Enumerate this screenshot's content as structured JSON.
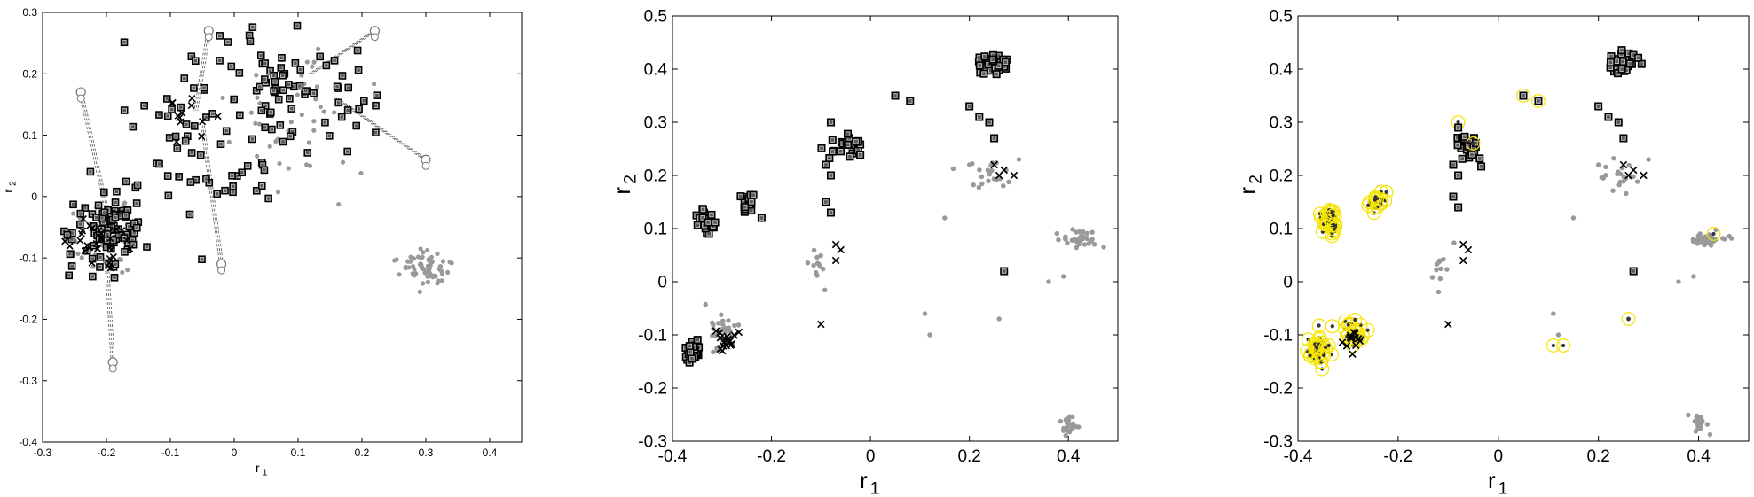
{
  "chart_data": [
    {
      "type": "scatter",
      "title": "",
      "xlabel": "r",
      "xlabel_subscript": "1",
      "ylabel": "r",
      "ylabel_subscript": "2",
      "xlim": [
        -0.3,
        0.45
      ],
      "ylim": [
        -0.4,
        0.3
      ],
      "xticks": [
        -0.3,
        -0.2,
        -0.1,
        0,
        0.1,
        0.2,
        0.3,
        0.4
      ],
      "yticks": [
        -0.4,
        -0.3,
        -0.2,
        -0.1,
        0,
        0.1,
        0.2,
        0.3
      ],
      "tick_labels_x": [
        "-0.3",
        "-0.2",
        "-0.1",
        "0",
        "0.1",
        "0.2",
        "0.3",
        "0.4"
      ],
      "tick_labels_y": [
        "-0.4",
        "-0.3",
        "-0.2",
        "-0.1",
        "0",
        "0.1",
        "0.2",
        "0.3"
      ],
      "grid": false,
      "clusters": [
        {
          "marker": "square",
          "color": "#000000",
          "cx": -0.2,
          "cy": -0.06,
          "sx": 0.03,
          "sy": 0.04,
          "n": 90
        },
        {
          "marker": "x",
          "color": "#000000",
          "cx": -0.21,
          "cy": -0.08,
          "sx": 0.025,
          "sy": 0.025,
          "n": 30
        },
        {
          "marker": "dot",
          "color": "#999999",
          "cx": -0.2,
          "cy": -0.07,
          "sx": 0.03,
          "sy": 0.03,
          "n": 40
        },
        {
          "marker": "square",
          "color": "#000000",
          "cx": -0.06,
          "cy": 0.1,
          "sx": 0.06,
          "sy": 0.08,
          "n": 60
        },
        {
          "marker": "square",
          "color": "#000000",
          "cx": 0.1,
          "cy": 0.17,
          "sx": 0.07,
          "sy": 0.05,
          "n": 70
        },
        {
          "marker": "dot",
          "color": "#999999",
          "cx": 0.1,
          "cy": 0.12,
          "sx": 0.06,
          "sy": 0.05,
          "n": 45
        },
        {
          "marker": "dot",
          "color": "#999999",
          "cx": 0.3,
          "cy": -0.12,
          "sx": 0.02,
          "sy": 0.015,
          "n": 70
        },
        {
          "marker": "x",
          "color": "#000000",
          "cx": -0.07,
          "cy": 0.14,
          "sx": 0.02,
          "sy": 0.02,
          "n": 12
        }
      ],
      "connectors": [
        {
          "from": [
            -0.24,
            0.17
          ],
          "to": [
            -0.2,
            -0.02
          ]
        },
        {
          "from": [
            -0.19,
            -0.27
          ],
          "to": [
            -0.2,
            -0.1
          ]
        },
        {
          "from": [
            -0.04,
            0.27
          ],
          "to": [
            -0.06,
            0.14
          ]
        },
        {
          "from": [
            -0.02,
            -0.11
          ],
          "to": [
            -0.05,
            0.12
          ]
        },
        {
          "from": [
            0.22,
            0.27
          ],
          "to": [
            0.12,
            0.2
          ]
        },
        {
          "from": [
            0.3,
            0.06
          ],
          "to": [
            0.16,
            0.16
          ]
        }
      ]
    },
    {
      "type": "scatter",
      "title": "",
      "xlabel": "r",
      "xlabel_subscript": "1",
      "ylabel": "r",
      "ylabel_subscript": "2",
      "xlim": [
        -0.4,
        0.5
      ],
      "ylim": [
        -0.3,
        0.5
      ],
      "xticks": [
        -0.4,
        -0.2,
        0,
        0.2,
        0.4
      ],
      "yticks": [
        -0.3,
        -0.2,
        -0.1,
        0,
        0.1,
        0.2,
        0.3,
        0.4,
        0.5
      ],
      "tick_labels_x": [
        "-0.4",
        "-0.2",
        "0",
        "0.2",
        "0.4"
      ],
      "tick_labels_y": [
        "-0.3",
        "-0.2",
        "-0.1",
        "0",
        "0.1",
        "0.2",
        "0.3",
        "0.4",
        "0.5"
      ],
      "grid": false,
      "clusters": [
        {
          "marker": "square",
          "color": "#000000",
          "cx": -0.33,
          "cy": 0.11,
          "sx": 0.01,
          "sy": 0.012,
          "n": 30
        },
        {
          "marker": "square",
          "color": "#000000",
          "cx": -0.25,
          "cy": 0.15,
          "sx": 0.01,
          "sy": 0.01,
          "n": 18
        },
        {
          "marker": "square",
          "color": "#000000",
          "cx": -0.05,
          "cy": 0.25,
          "sx": 0.015,
          "sy": 0.012,
          "n": 24
        },
        {
          "marker": "square",
          "color": "#000000",
          "cx": 0.25,
          "cy": 0.41,
          "sx": 0.015,
          "sy": 0.01,
          "n": 40
        },
        {
          "marker": "square",
          "color": "#000000",
          "cx": -0.36,
          "cy": -0.13,
          "sx": 0.008,
          "sy": 0.012,
          "n": 30
        },
        {
          "marker": "x",
          "color": "#000000",
          "cx": -0.29,
          "cy": -0.11,
          "sx": 0.01,
          "sy": 0.01,
          "n": 18
        },
        {
          "marker": "dot",
          "color": "#999999",
          "cx": -0.3,
          "cy": -0.1,
          "sx": 0.015,
          "sy": 0.02,
          "n": 30
        },
        {
          "marker": "dot",
          "color": "#999999",
          "cx": 0.42,
          "cy": 0.08,
          "sx": 0.02,
          "sy": 0.007,
          "n": 35
        },
        {
          "marker": "dot",
          "color": "#999999",
          "cx": 0.4,
          "cy": -0.27,
          "sx": 0.008,
          "sy": 0.01,
          "n": 25
        },
        {
          "marker": "dot",
          "color": "#999999",
          "cx": 0.24,
          "cy": 0.2,
          "sx": 0.02,
          "sy": 0.015,
          "n": 20
        },
        {
          "marker": "dot",
          "color": "#999999",
          "cx": -0.11,
          "cy": 0.03,
          "sx": 0.01,
          "sy": 0.025,
          "n": 12
        }
      ],
      "points": [
        {
          "marker": "square",
          "x": -0.08,
          "y": 0.3
        },
        {
          "marker": "square",
          "x": -0.09,
          "y": 0.22
        },
        {
          "marker": "square",
          "x": -0.08,
          "y": 0.2
        },
        {
          "marker": "square",
          "x": -0.09,
          "y": 0.15
        },
        {
          "marker": "square",
          "x": -0.08,
          "y": 0.13
        },
        {
          "marker": "square",
          "x": 0.05,
          "y": 0.35
        },
        {
          "marker": "square",
          "x": 0.08,
          "y": 0.34
        },
        {
          "marker": "square",
          "x": 0.2,
          "y": 0.33
        },
        {
          "marker": "square",
          "x": 0.22,
          "y": 0.31
        },
        {
          "marker": "square",
          "x": 0.24,
          "y": 0.3
        },
        {
          "marker": "square",
          "x": 0.25,
          "y": 0.27
        },
        {
          "marker": "square",
          "x": 0.27,
          "y": 0.02
        },
        {
          "marker": "square",
          "x": -0.22,
          "y": 0.12
        },
        {
          "marker": "x",
          "x": 0.25,
          "y": 0.22
        },
        {
          "marker": "x",
          "x": 0.27,
          "y": 0.21
        },
        {
          "marker": "x",
          "x": 0.29,
          "y": 0.2
        },
        {
          "marker": "x",
          "x": 0.26,
          "y": 0.2
        },
        {
          "marker": "x",
          "x": -0.1,
          "y": -0.08
        },
        {
          "marker": "x",
          "x": -0.07,
          "y": 0.07
        },
        {
          "marker": "x",
          "x": -0.06,
          "y": 0.06
        },
        {
          "marker": "x",
          "x": -0.07,
          "y": 0.04
        },
        {
          "marker": "dot",
          "x": 0.2,
          "y": 0.22
        },
        {
          "marker": "dot",
          "x": 0.3,
          "y": 0.23
        },
        {
          "marker": "dot",
          "x": 0.15,
          "y": 0.12
        },
        {
          "marker": "dot",
          "x": 0.36,
          "y": 0.0
        },
        {
          "marker": "dot",
          "x": 0.39,
          "y": 0.01
        },
        {
          "marker": "dot",
          "x": 0.11,
          "y": -0.06
        },
        {
          "marker": "dot",
          "x": 0.12,
          "y": -0.1
        },
        {
          "marker": "dot",
          "x": 0.26,
          "y": -0.07
        }
      ]
    },
    {
      "type": "scatter",
      "title": "",
      "xlabel": "r",
      "xlabel_subscript": "1",
      "ylabel": "r",
      "ylabel_subscript": "2",
      "xlim": [
        -0.4,
        0.5
      ],
      "ylim": [
        -0.3,
        0.5
      ],
      "xticks": [
        -0.4,
        -0.2,
        0,
        0.2,
        0.4
      ],
      "yticks": [
        -0.3,
        -0.2,
        -0.1,
        0,
        0.1,
        0.2,
        0.3,
        0.4,
        0.5
      ],
      "tick_labels_x": [
        "-0.4",
        "-0.2",
        "0",
        "0.2",
        "0.4"
      ],
      "tick_labels_y": [
        "-0.3",
        "-0.2",
        "-0.1",
        "0",
        "0.1",
        "0.2",
        "0.3",
        "0.4",
        "0.5"
      ],
      "grid": false,
      "highlight_color": "#f5e400",
      "clusters": [
        {
          "marker": "square",
          "color": "#000000",
          "cx": -0.05,
          "cy": 0.25,
          "sx": 0.015,
          "sy": 0.012,
          "n": 24
        },
        {
          "marker": "square",
          "color": "#000000",
          "cx": 0.25,
          "cy": 0.41,
          "sx": 0.015,
          "sy": 0.01,
          "n": 40
        },
        {
          "marker": "ring",
          "color": "#f5e400",
          "cx": -0.34,
          "cy": 0.11,
          "sx": 0.01,
          "sy": 0.012,
          "n": 35
        },
        {
          "marker": "ring",
          "color": "#f5e400",
          "cx": -0.24,
          "cy": 0.15,
          "sx": 0.01,
          "sy": 0.01,
          "n": 20
        },
        {
          "marker": "ring",
          "color": "#f5e400",
          "cx": -0.36,
          "cy": -0.13,
          "sx": 0.012,
          "sy": 0.015,
          "n": 40
        },
        {
          "marker": "ring",
          "color": "#f5e400",
          "cx": -0.29,
          "cy": -0.1,
          "sx": 0.014,
          "sy": 0.015,
          "n": 25
        },
        {
          "marker": "x",
          "color": "#000000",
          "cx": -0.29,
          "cy": -0.11,
          "sx": 0.01,
          "sy": 0.01,
          "n": 12
        },
        {
          "marker": "dot",
          "color": "#999999",
          "cx": 0.42,
          "cy": 0.08,
          "sx": 0.02,
          "sy": 0.007,
          "n": 35
        },
        {
          "marker": "dot",
          "color": "#999999",
          "cx": 0.4,
          "cy": -0.27,
          "sx": 0.008,
          "sy": 0.01,
          "n": 25
        },
        {
          "marker": "dot",
          "color": "#999999",
          "cx": 0.24,
          "cy": 0.2,
          "sx": 0.02,
          "sy": 0.015,
          "n": 20
        },
        {
          "marker": "dot",
          "color": "#999999",
          "cx": -0.11,
          "cy": 0.03,
          "sx": 0.01,
          "sy": 0.025,
          "n": 12
        }
      ],
      "points": [
        {
          "marker": "square",
          "x": -0.08,
          "y": 0.29
        },
        {
          "marker": "square",
          "x": -0.09,
          "y": 0.22
        },
        {
          "marker": "square",
          "x": -0.08,
          "y": 0.2
        },
        {
          "marker": "square",
          "x": -0.09,
          "y": 0.16
        },
        {
          "marker": "square",
          "x": -0.08,
          "y": 0.14
        },
        {
          "marker": "square",
          "x": 0.05,
          "y": 0.35
        },
        {
          "marker": "square",
          "x": 0.08,
          "y": 0.34
        },
        {
          "marker": "square",
          "x": 0.2,
          "y": 0.33
        },
        {
          "marker": "square",
          "x": 0.22,
          "y": 0.31
        },
        {
          "marker": "square",
          "x": 0.24,
          "y": 0.3
        },
        {
          "marker": "square",
          "x": 0.25,
          "y": 0.27
        },
        {
          "marker": "square",
          "x": 0.27,
          "y": 0.02
        },
        {
          "marker": "ring",
          "x": 0.05,
          "y": 0.35
        },
        {
          "marker": "ring",
          "x": 0.08,
          "y": 0.34
        },
        {
          "marker": "ring",
          "x": -0.08,
          "y": 0.3
        },
        {
          "marker": "ring",
          "x": -0.05,
          "y": 0.26
        },
        {
          "marker": "ring",
          "x": 0.11,
          "y": -0.12
        },
        {
          "marker": "ring",
          "x": 0.13,
          "y": -0.12
        },
        {
          "marker": "ring",
          "x": 0.26,
          "y": -0.07
        },
        {
          "marker": "ring",
          "x": 0.43,
          "y": 0.09
        },
        {
          "marker": "x",
          "x": 0.25,
          "y": 0.22
        },
        {
          "marker": "x",
          "x": 0.27,
          "y": 0.21
        },
        {
          "marker": "x",
          "x": 0.29,
          "y": 0.2
        },
        {
          "marker": "x",
          "x": 0.26,
          "y": 0.2
        },
        {
          "marker": "x",
          "x": -0.1,
          "y": -0.08
        },
        {
          "marker": "x",
          "x": -0.07,
          "y": 0.07
        },
        {
          "marker": "x",
          "x": -0.06,
          "y": 0.06
        },
        {
          "marker": "x",
          "x": -0.07,
          "y": 0.04
        },
        {
          "marker": "dot",
          "x": 0.2,
          "y": 0.22
        },
        {
          "marker": "dot",
          "x": 0.3,
          "y": 0.23
        },
        {
          "marker": "dot",
          "x": 0.15,
          "y": 0.12
        },
        {
          "marker": "dot",
          "x": 0.36,
          "y": 0.0
        },
        {
          "marker": "dot",
          "x": 0.39,
          "y": 0.01
        },
        {
          "marker": "dot",
          "x": 0.11,
          "y": -0.06
        },
        {
          "marker": "dot",
          "x": 0.12,
          "y": -0.1
        },
        {
          "marker": "dot",
          "x": 0.26,
          "y": -0.07
        }
      ]
    }
  ]
}
